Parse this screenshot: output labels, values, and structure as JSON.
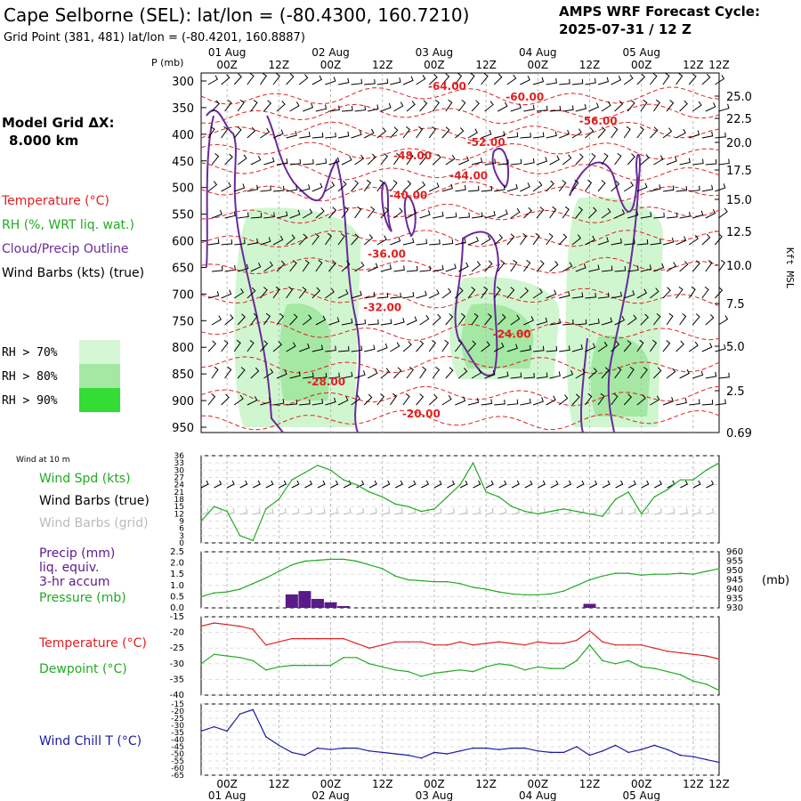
{
  "header": {
    "title": "Cape Selborne (SEL):  lat/lon = (-80.4300, 160.7210)",
    "subtitle": "Grid Point (381, 481) lat/lon = (-80.4201, 160.8887)",
    "cycle_label": "AMPS WRF Forecast Cycle:",
    "cycle_value": "2025-07-31 / 12  Z"
  },
  "left_panel": {
    "grid_label": "Model Grid ΔX:",
    "grid_value": "8.000 km",
    "legend": [
      {
        "text": "Temperature (°C)",
        "color": "#e02020"
      },
      {
        "text": "RH (%, WRT liq. wat.)",
        "color": "#22aa22"
      },
      {
        "text": "Cloud/Precip Outline",
        "color": "#6a2a9a"
      },
      {
        "text": "Wind Barbs (kts) (true)",
        "color": "#000000"
      }
    ],
    "rh_legend": [
      {
        "text": "RH > 70%",
        "color": "#d6f7d6"
      },
      {
        "text": "RH > 80%",
        "color": "#a4e8a4"
      },
      {
        "text": "RH > 90%",
        "color": "#33dd33"
      }
    ]
  },
  "time_axis": {
    "ticks": [
      "00Z",
      "12Z",
      "00Z",
      "12Z",
      "00Z",
      "12Z",
      "00Z",
      "12Z",
      "00Z",
      "12Z"
    ],
    "dates": [
      "01 Aug",
      "02 Aug",
      "03 Aug",
      "04 Aug",
      "05 Aug"
    ]
  },
  "colors": {
    "temperature": "#e02020",
    "rh": "#22aa22",
    "cloud": "#6a2a9a",
    "wind": "#000000",
    "windchill": "#1a1aa0",
    "precip": "#5a1a8a",
    "grid": "#b8b8b8"
  },
  "chart_data": [
    {
      "type": "heatmap",
      "id": "cross-section",
      "y_axis_label": "P (mb)",
      "y_ticks_pressure": [
        300,
        350,
        400,
        450,
        500,
        550,
        600,
        650,
        700,
        750,
        800,
        850,
        900,
        950
      ],
      "y_ticks_kft": [
        "25.0",
        "22.5",
        "20.0",
        "17.5",
        "15.0",
        "12.5",
        "10.0",
        "7.5",
        "5.0",
        "2.5",
        "0.69"
      ],
      "right_axis_label": "Kft MSL",
      "temperature_labels": [
        {
          "text": "-64.00",
          "time_h": 57,
          "p": 310
        },
        {
          "text": "-60.00",
          "time_h": 75,
          "p": 330
        },
        {
          "text": "-56.00",
          "time_h": 92,
          "p": 375
        },
        {
          "text": "-52.00",
          "time_h": 66,
          "p": 415
        },
        {
          "text": "-48.00",
          "time_h": 49,
          "p": 440
        },
        {
          "text": "-44.00",
          "time_h": 62,
          "p": 478
        },
        {
          "text": "-40.00",
          "time_h": 48,
          "p": 515
        },
        {
          "text": "-36.00",
          "time_h": 43,
          "p": 625
        },
        {
          "text": "-32.00",
          "time_h": 42,
          "p": 725
        },
        {
          "text": "-24.00",
          "time_h": 72,
          "p": 775
        },
        {
          "text": "-28.00",
          "time_h": 29,
          "p": 865
        },
        {
          "text": "-20.00",
          "time_h": 51,
          "p": 925
        }
      ],
      "rh_regions": [
        {
          "level": "70",
          "t0": 7,
          "t1": 37,
          "p_top": 540,
          "p_bot": 950
        },
        {
          "level": "70",
          "t0": 57,
          "t1": 83,
          "p_top": 670,
          "p_bot": 860
        },
        {
          "level": "70",
          "t0": 84,
          "t1": 107,
          "p_top": 520,
          "p_bot": 950
        },
        {
          "level": "80",
          "t0": 18,
          "t1": 30,
          "p_top": 720,
          "p_bot": 900
        },
        {
          "level": "80",
          "t0": 60,
          "t1": 77,
          "p_top": 720,
          "p_bot": 840
        },
        {
          "level": "80",
          "t0": 90,
          "t1": 104,
          "p_top": 780,
          "p_bot": 930
        }
      ]
    },
    {
      "type": "line",
      "id": "wind10m",
      "title": "Wind at 10 m",
      "legend": [
        "Wind Spd (kts)",
        "Wind Barbs (true)",
        "Wind Barbs (grid)"
      ],
      "y_ticks": [
        "36",
        "33",
        "30",
        "27",
        "24",
        "21",
        "18",
        "15",
        "12",
        "9",
        "6",
        "3",
        "0"
      ],
      "ylim": [
        0,
        36
      ],
      "x_hours": [
        0,
        3,
        6,
        9,
        12,
        15,
        18,
        21,
        24,
        27,
        30,
        33,
        36,
        39,
        42,
        45,
        48,
        51,
        54,
        57,
        60,
        63,
        66,
        69,
        72,
        75,
        78,
        81,
        84,
        87,
        90,
        93,
        96,
        99,
        102,
        105,
        108,
        111,
        114,
        117,
        120
      ],
      "values": [
        9,
        15,
        13,
        3,
        1,
        14,
        18,
        26,
        29,
        32,
        30,
        26,
        24,
        21,
        19,
        16,
        15,
        13,
        14,
        19,
        24,
        33,
        21,
        19,
        15,
        13,
        12,
        13,
        14,
        13,
        12,
        11,
        18,
        21,
        12,
        19,
        22,
        26,
        26,
        30,
        33
      ]
    },
    {
      "type": "bar",
      "id": "precip-pressure",
      "legend": [
        "Precip (mm)",
        "liq. equiv.",
        "3-hr accum",
        "Pressure (mb)"
      ],
      "y_ticks": [
        "2.5",
        "2.0",
        "1.5",
        "1.0",
        "0.5",
        "0.0"
      ],
      "ylim": [
        0,
        2.5
      ],
      "y2_ticks": [
        "960",
        "955",
        "950",
        "945",
        "940",
        "935",
        "930"
      ],
      "y2lim": [
        930,
        960
      ],
      "y2_unit": "(mb)",
      "precip_hours": [
        21,
        24,
        27,
        30,
        33,
        90
      ],
      "precip_values": [
        0.6,
        0.75,
        0.4,
        0.25,
        0.08,
        0.18
      ],
      "pressure_hours": [
        0,
        3,
        6,
        9,
        12,
        15,
        18,
        21,
        24,
        27,
        30,
        33,
        36,
        39,
        42,
        45,
        48,
        51,
        54,
        57,
        60,
        63,
        66,
        69,
        72,
        75,
        78,
        81,
        84,
        87,
        90,
        93,
        96,
        99,
        102,
        105,
        108,
        111,
        114,
        117,
        120
      ],
      "pressure_values": [
        936,
        938,
        938.5,
        940,
        943,
        946,
        949.5,
        953,
        955,
        955.5,
        956,
        956,
        955,
        953,
        951,
        947,
        945,
        944.5,
        944,
        944,
        943,
        941,
        940,
        938.5,
        937.5,
        937,
        937,
        937.5,
        939,
        942,
        945,
        947,
        948.5,
        948.5,
        947.5,
        948,
        948,
        948.5,
        948,
        949.5,
        951
      ]
    },
    {
      "type": "line",
      "id": "temp-dewpoint",
      "legend": [
        "Temperature (°C)",
        "Dewpoint (°C)"
      ],
      "y_ticks": [
        "-15",
        "-20",
        "-25",
        "-30",
        "-35",
        "-40"
      ],
      "ylim": [
        -40,
        -15
      ],
      "x_hours": [
        0,
        3,
        6,
        9,
        12,
        15,
        18,
        21,
        24,
        27,
        30,
        33,
        36,
        39,
        42,
        45,
        48,
        51,
        54,
        57,
        60,
        63,
        66,
        69,
        72,
        75,
        78,
        81,
        84,
        87,
        90,
        93,
        96,
        99,
        102,
        105,
        108,
        111,
        114,
        117,
        120
      ],
      "temperature": [
        -18,
        -17,
        -17.5,
        -18,
        -19,
        -24,
        -23,
        -22,
        -22,
        -22,
        -22,
        -22,
        -23.5,
        -25,
        -24,
        -23,
        -23,
        -23,
        -24,
        -24,
        -23,
        -24,
        -23.5,
        -23,
        -23.5,
        -24,
        -23,
        -23.5,
        -23.5,
        -22.5,
        -19.5,
        -23,
        -24,
        -24,
        -24,
        -25,
        -26,
        -26.5,
        -27,
        -27.5,
        -28.5
      ],
      "dewpoint": [
        -30,
        -27,
        -27.5,
        -28,
        -29,
        -32,
        -31,
        -30.5,
        -30.5,
        -30.5,
        -30.5,
        -28,
        -28,
        -30,
        -31,
        -32,
        -32.5,
        -34,
        -33,
        -32.5,
        -32,
        -32.5,
        -31,
        -30,
        -30.5,
        -32,
        -31,
        -31.5,
        -31.5,
        -29,
        -24,
        -29,
        -30,
        -29,
        -31,
        -31.5,
        -32.5,
        -33.5,
        -35.5,
        -36.5,
        -38.5
      ]
    },
    {
      "type": "line",
      "id": "windchill",
      "legend": [
        "Wind Chill T (°C)"
      ],
      "y_ticks": [
        "-15",
        "-20",
        "-25",
        "-30",
        "-35",
        "-40",
        "-45",
        "-50",
        "-55",
        "-60",
        "-65"
      ],
      "ylim": [
        -65,
        -15
      ],
      "x_hours": [
        0,
        3,
        6,
        9,
        12,
        15,
        18,
        21,
        24,
        27,
        30,
        33,
        36,
        39,
        42,
        45,
        48,
        51,
        54,
        57,
        60,
        63,
        66,
        69,
        72,
        75,
        78,
        81,
        84,
        87,
        90,
        93,
        96,
        99,
        102,
        105,
        108,
        111,
        114,
        117,
        120
      ],
      "values": [
        -34,
        -31,
        -34,
        -22,
        -19,
        -38,
        -44,
        -49,
        -51,
        -46,
        -47,
        -46,
        -46,
        -48,
        -49,
        -50,
        -51,
        -53,
        -49,
        -50,
        -48,
        -46,
        -46,
        -47,
        -46,
        -46,
        -48,
        -49,
        -49,
        -45,
        -51,
        -48,
        -44,
        -49,
        -47,
        -44,
        -47,
        -51,
        -52,
        -54,
        -56
      ]
    }
  ]
}
